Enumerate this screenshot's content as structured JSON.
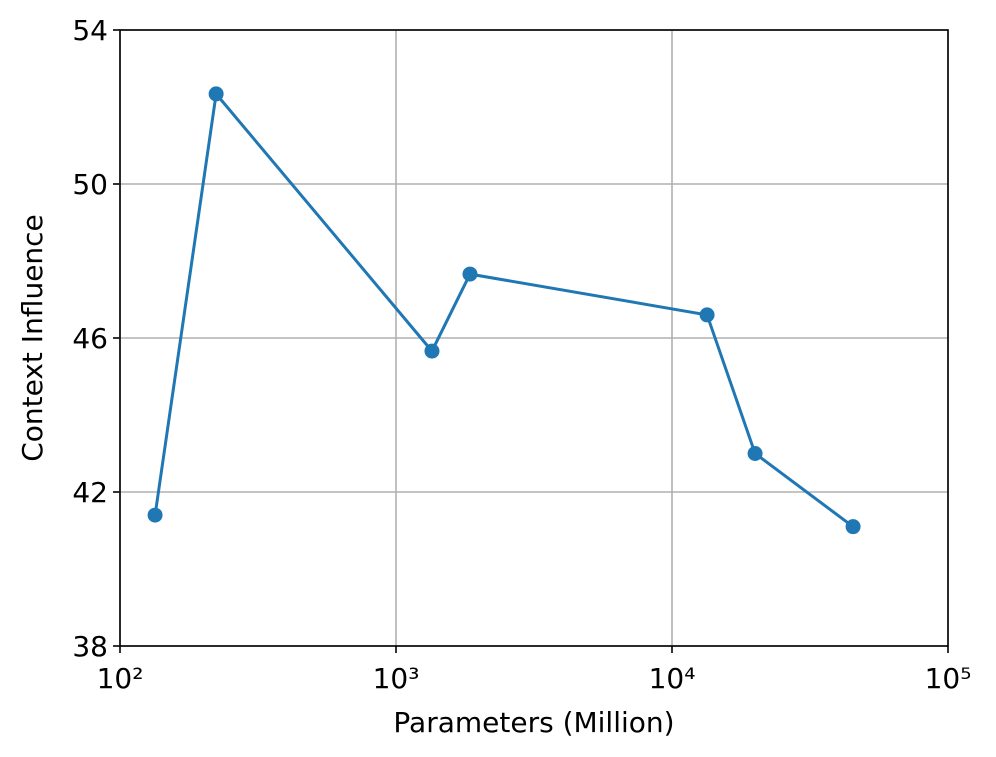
{
  "chart_data": {
    "type": "line",
    "xlabel": "Parameters (Million)",
    "ylabel": "Context Influence",
    "x": [
      134,
      223,
      1350,
      1854,
      13400,
      20000,
      45300
    ],
    "series": [
      {
        "color": "#1f77b4",
        "values": [
          41.4,
          52.34,
          45.66,
          47.66,
          46.6,
          43.0,
          41.1
        ]
      }
    ],
    "xscale": "log",
    "xlim": [
      100,
      100000
    ],
    "xticks": [
      {
        "value": 100,
        "label": "10²"
      },
      {
        "value": 1000,
        "label": "10³"
      },
      {
        "value": 10000,
        "label": "10⁴"
      },
      {
        "value": 100000,
        "label": "10⁵"
      }
    ],
    "ylim": [
      38,
      54
    ],
    "yticks": [
      38,
      42,
      46,
      50,
      54
    ],
    "grid": true
  }
}
